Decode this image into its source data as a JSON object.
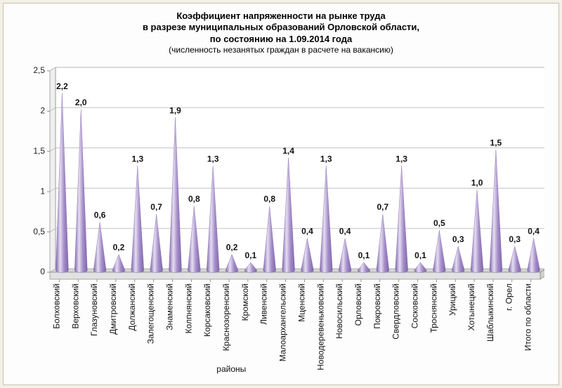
{
  "title": {
    "line1": "Коэффициент напряженности на рынке труда",
    "line2": "в разрезе муниципальных образований Орловской области,",
    "line3": "по состоянию на 1.09.2014 года",
    "subtitle": "(численность незанятых граждан в расчете на вакансию)"
  },
  "chart": {
    "type": "cone-bar",
    "title_fontsize": 13,
    "subtitle_fontsize": 12,
    "value_label_fontsize": 12,
    "tick_fontsize": 12,
    "category_fontsize": 12,
    "background_color": "#fdfdfd",
    "plot_background_color": "#ffffff",
    "frame_background_color": "#f3f1e6",
    "gridline_color": "#b8b8b8",
    "axis_color": "#7a7a7a",
    "floor_color_front": "#e2e2e2",
    "floor_color_top": "#d6d6d6",
    "bar_fill": "#a58ec9",
    "bar_fill_dark": "#7e66ab",
    "bar_highlight": "#e5ddf2",
    "ylim": [
      0,
      2.5
    ],
    "ytick_step": 0.5,
    "yticks": [
      "0",
      "0,5",
      "1",
      "1,5",
      "2",
      "2,5"
    ],
    "x_axis_title": "районы",
    "cone_half_width": 9,
    "depth_dx": 8,
    "depth_dy": -5,
    "floor_height": 10,
    "categories": [
      "Болховский",
      "Верховский",
      "Глазуновский",
      "Дмитровский",
      "Должанский",
      "Залегощенский",
      "Знаменский",
      "Колпнянский",
      "Корсаковский",
      "Краснозоренский",
      "Кромской",
      "Ливенский",
      "Малоархангельский",
      "Мценский",
      "Новодеревеньковский",
      "Новосильский",
      "Орловский",
      "Покровский",
      "Свердловский",
      "Сосковский",
      "Троснянский",
      "Урицкий",
      "Хотынецкий",
      "Шаблыкинский",
      "г. Орел",
      "Итого по области"
    ],
    "values": [
      2.2,
      2.0,
      0.6,
      0.2,
      1.3,
      0.7,
      1.9,
      0.8,
      1.3,
      0.2,
      0.1,
      0.8,
      1.4,
      0.4,
      1.3,
      0.4,
      0.1,
      0.7,
      1.3,
      0.1,
      0.5,
      0.3,
      1.0,
      1.5,
      0.3,
      0.4
    ],
    "value_labels": [
      "2,2",
      "2,0",
      "0,6",
      "0,2",
      "1,3",
      "0,7",
      "1,9",
      "0,8",
      "1,3",
      "0,2",
      "0,1",
      "0,8",
      "1,4",
      "0,4",
      "1,3",
      "0,4",
      "0,1",
      "0,7",
      "1,3",
      "0,1",
      "0,5",
      "0,3",
      "1,0",
      "1,5",
      "0,3",
      "0,4"
    ]
  }
}
